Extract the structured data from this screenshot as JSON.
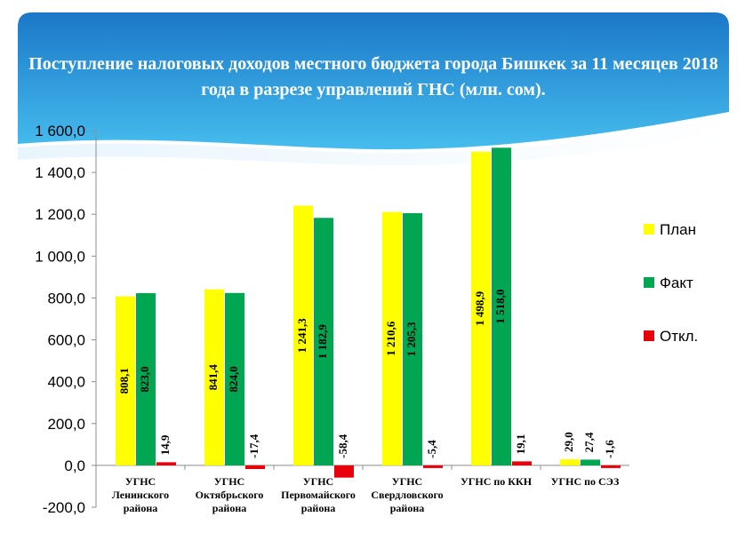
{
  "title": "Поступление налоговых доходов местного бюджета города Бишкек за 11 месяцев 2018 года в разрезе управлений  ГНС (млн. сом).",
  "chart_data": {
    "type": "bar",
    "title": "Поступление налоговых доходов местного бюджета города Бишкек за 11 месяцев 2018 года в разрезе управлений  ГНС (млн. сом).",
    "categories": [
      [
        "УГНС",
        "Ленинского",
        "района"
      ],
      [
        "УГНС",
        "Октябрьского",
        "района"
      ],
      [
        "УГНС",
        "Первомайского",
        "района"
      ],
      [
        "УГНС",
        "Свердловского",
        "района"
      ],
      [
        "УГНС   по ККН"
      ],
      [
        "УГНС   по СЭЗ"
      ]
    ],
    "series": [
      {
        "name": "План",
        "color": "#ffff00",
        "values": [
          808.1,
          841.4,
          1241.3,
          1210.6,
          1498.9,
          29.0
        ],
        "labels": [
          "808,1",
          "841,4",
          "1 241,3",
          "1 210,6",
          "1 498,9",
          "29,0"
        ]
      },
      {
        "name": "Факт",
        "color": "#00a651",
        "values": [
          823.0,
          824.0,
          1182.9,
          1205.3,
          1518.0,
          27.4
        ],
        "labels": [
          "823,0",
          "824,0",
          "1 182,9",
          "1 205,3",
          "1 518,0",
          "27,4"
        ]
      },
      {
        "name": "Откл.",
        "color": "#e8000b",
        "values": [
          14.9,
          -17.4,
          -58.4,
          -5.4,
          19.1,
          -1.6
        ],
        "labels": [
          "14,9",
          "-17,4",
          "-58,4",
          "-5,4",
          "19,1",
          "-1,6"
        ]
      }
    ],
    "ylim": [
      -200,
      1600
    ],
    "yticks": [
      -200,
      0,
      200,
      400,
      600,
      800,
      1000,
      1200,
      1400,
      1600
    ],
    "ytick_labels": [
      "-200,0",
      "0,0",
      "200,0",
      "400,0",
      "600,0",
      "800,0",
      "1 000,0",
      "1 200,0",
      "1 400,0",
      "1 600,0"
    ],
    "xlabel": "",
    "ylabel": "",
    "grid": false,
    "legend": "right"
  },
  "colors": {
    "header_top": "#1b78c8",
    "header_bottom": "#41b8ec"
  }
}
